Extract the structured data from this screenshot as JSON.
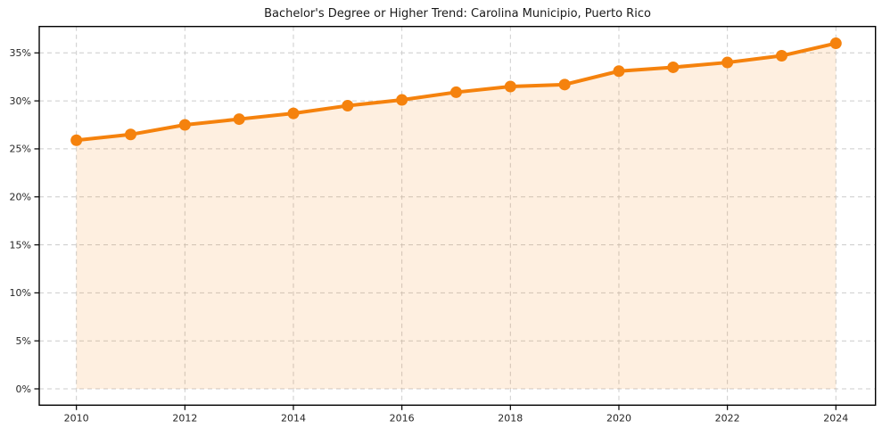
{
  "title": "Bachelor's Degree or Higher Trend: Carolina Municipio, Puerto Rico",
  "chart_data": {
    "type": "line",
    "title": "Bachelor's Degree or Higher Trend: Carolina Municipio, Puerto Rico",
    "x": [
      2010,
      2011,
      2012,
      2013,
      2014,
      2015,
      2016,
      2017,
      2018,
      2019,
      2020,
      2021,
      2022,
      2023,
      2024
    ],
    "series": [
      {
        "name": "Bachelor's degree or higher (%)",
        "values": [
          25.9,
          26.5,
          27.5,
          28.1,
          28.7,
          29.5,
          30.1,
          30.9,
          31.5,
          31.7,
          33.1,
          33.5,
          34.0,
          34.7,
          36.0
        ]
      }
    ],
    "xlabel": "",
    "ylabel": "",
    "xlim": [
      2009.315,
      2024.73
    ],
    "ylim": [
      -1.7,
      37.75
    ],
    "x_tick_values": [
      2010,
      2012,
      2014,
      2016,
      2018,
      2020,
      2022,
      2024
    ],
    "x_tick_labels": [
      "2010",
      "2012",
      "2014",
      "2016",
      "2018",
      "2020",
      "2022",
      "2024"
    ],
    "y_tick_values": [
      0,
      5,
      10,
      15,
      20,
      25,
      30,
      35
    ],
    "y_tick_labels": [
      "0%",
      "5%",
      "10%",
      "15%",
      "20%",
      "25%",
      "30%",
      "35%"
    ],
    "grid": "dashed",
    "legend": "none",
    "area_fill_baseline": 0,
    "colors": {
      "line": "#f5820d",
      "marker": "#f5820d",
      "fill_rgba": "rgba(245,130,13,0.13)",
      "grid": "#cccccc",
      "axis": "#000000",
      "tick_text": "#262626",
      "title_text": "#1a1a1a",
      "background": "#ffffff"
    }
  }
}
